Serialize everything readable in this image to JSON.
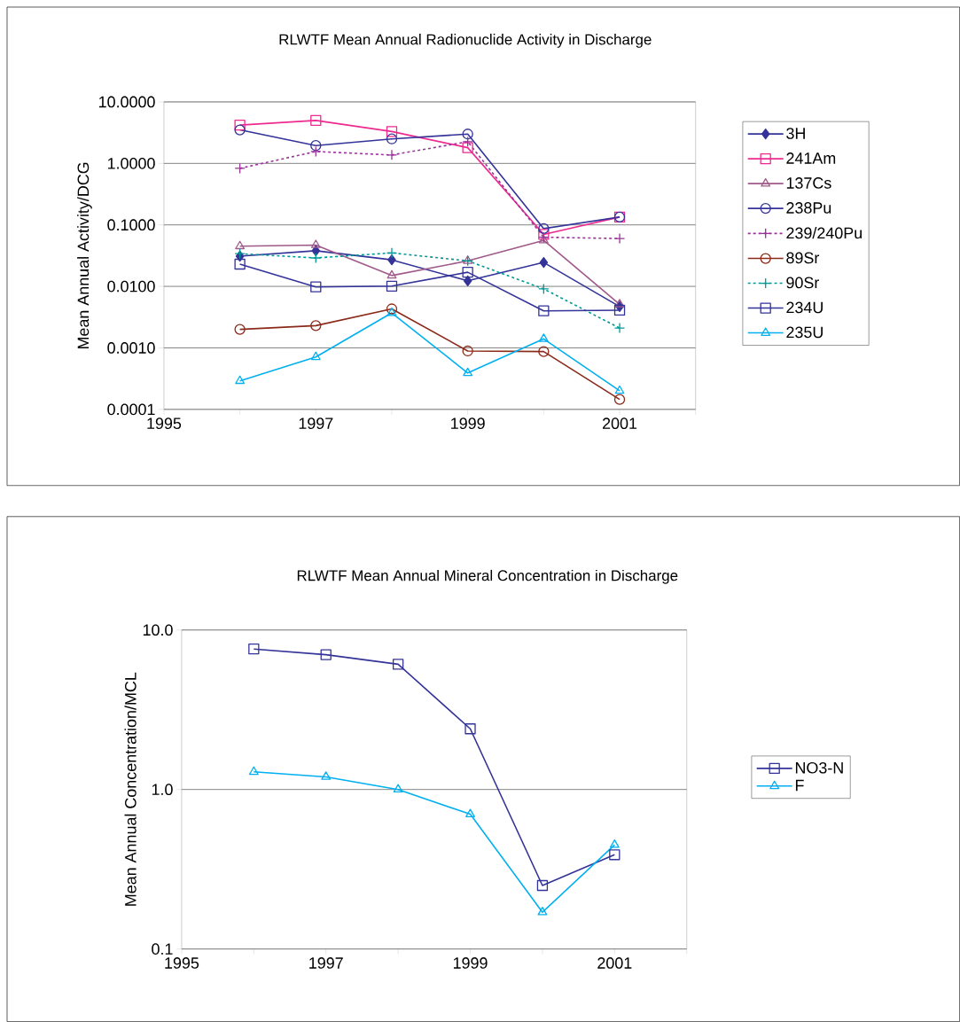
{
  "chart_data": [
    {
      "type": "line",
      "title": "RLWTF Mean Annual Radionuclide Activity in Discharge",
      "ylabel": "Mean Annual Activity/DCG",
      "x": [
        1996,
        1997,
        1998,
        1999,
        2000,
        2001
      ],
      "xlim": [
        1995,
        2002
      ],
      "xticks": [
        1995,
        {
          "value": 1996,
          "label": null
        },
        1997,
        {
          "value": 1998,
          "label": null
        },
        1999,
        {
          "value": 2000,
          "label": null
        },
        2001,
        {
          "value": 2002,
          "label": null
        }
      ],
      "log": "y",
      "ylim": [
        0.0001,
        10
      ],
      "yticks": [
        {
          "value": 0.0001,
          "label": "0.0001"
        },
        {
          "value": 0.001,
          "label": "0.0010"
        },
        {
          "value": 0.01,
          "label": "0.0100"
        },
        {
          "value": 0.1,
          "label": "0.1000"
        },
        {
          "value": 1,
          "label": "1.0000"
        },
        {
          "value": 10,
          "label": "10.0000"
        }
      ],
      "grid": "y",
      "legend": "right",
      "series": [
        {
          "name": "3H",
          "color": "#333399",
          "marker": "diamond",
          "line_style": "solid",
          "values": [
            0.031,
            0.038,
            0.027,
            0.0123,
            0.0245,
            0.0047
          ]
        },
        {
          "name": "241Am",
          "color": "#ee2a8f",
          "marker": "square",
          "line_style": "solid",
          "values": [
            4.2,
            5.0,
            3.3,
            1.8,
            0.07,
            0.134
          ]
        },
        {
          "name": "137Cs",
          "color": "#a05a8a",
          "marker": "triangle",
          "line_style": "solid",
          "values": [
            0.045,
            0.047,
            0.015,
            0.026,
            0.056,
            0.0051
          ]
        },
        {
          "name": "238Pu",
          "color": "#333399",
          "marker": "circle",
          "line_style": "solid",
          "values": [
            3.5,
            1.95,
            2.5,
            3.0,
            0.087,
            0.134
          ]
        },
        {
          "name": "239/240Pu",
          "color": "#993399",
          "marker": "cross",
          "line_style": "dashed",
          "values": [
            0.83,
            1.56,
            1.37,
            2.25,
            0.063,
            0.06
          ]
        },
        {
          "name": "89Sr",
          "color": "#8b2a1a",
          "marker": "circle",
          "line_style": "solid",
          "values": [
            0.002,
            0.0023,
            0.0043,
            0.00089,
            0.00087,
            0.000145
          ]
        },
        {
          "name": "90Sr",
          "color": "#009999",
          "marker": "cross",
          "line_style": "dashed",
          "values": [
            0.034,
            0.029,
            0.035,
            0.026,
            0.0091,
            0.0021
          ]
        },
        {
          "name": "234U",
          "color": "#333399",
          "marker": "square",
          "line_style": "solid",
          "values": [
            0.023,
            0.0098,
            0.0101,
            0.017,
            0.004,
            0.0041
          ]
        },
        {
          "name": "235U",
          "color": "#00b0f0",
          "marker": "triangle",
          "line_style": "solid",
          "values": [
            0.00029,
            0.00071,
            0.0037,
            0.00039,
            0.0014,
            0.0002
          ]
        }
      ]
    },
    {
      "type": "line",
      "title": "RLWTF Mean Annual Mineral Concentration in Discharge",
      "ylabel": "Mean Annual Concentration/MCL",
      "x": [
        1996,
        1997,
        1998,
        1999,
        2000,
        2001
      ],
      "xlim": [
        1995,
        2002
      ],
      "xticks": [
        1995,
        {
          "value": 1996,
          "label": null
        },
        1997,
        {
          "value": 1998,
          "label": null
        },
        1999,
        {
          "value": 2000,
          "label": null
        },
        2001,
        {
          "value": 2002,
          "label": null
        }
      ],
      "log": "y",
      "ylim": [
        0.1,
        10
      ],
      "yticks": [
        {
          "value": 0.1,
          "label": "0.1"
        },
        {
          "value": 1,
          "label": "1.0"
        },
        {
          "value": 10,
          "label": "10.0"
        }
      ],
      "grid": "y",
      "legend": "right",
      "series": [
        {
          "name": "NO3-N",
          "color": "#333399",
          "marker": "square",
          "line_style": "solid",
          "values": [
            7.6,
            7.0,
            6.1,
            2.4,
            0.25,
            0.39
          ]
        },
        {
          "name": "F",
          "color": "#00b0f0",
          "marker": "triangle",
          "line_style": "solid",
          "values": [
            1.29,
            1.2,
            1.0,
            0.7,
            0.17,
            0.45
          ]
        }
      ]
    }
  ]
}
